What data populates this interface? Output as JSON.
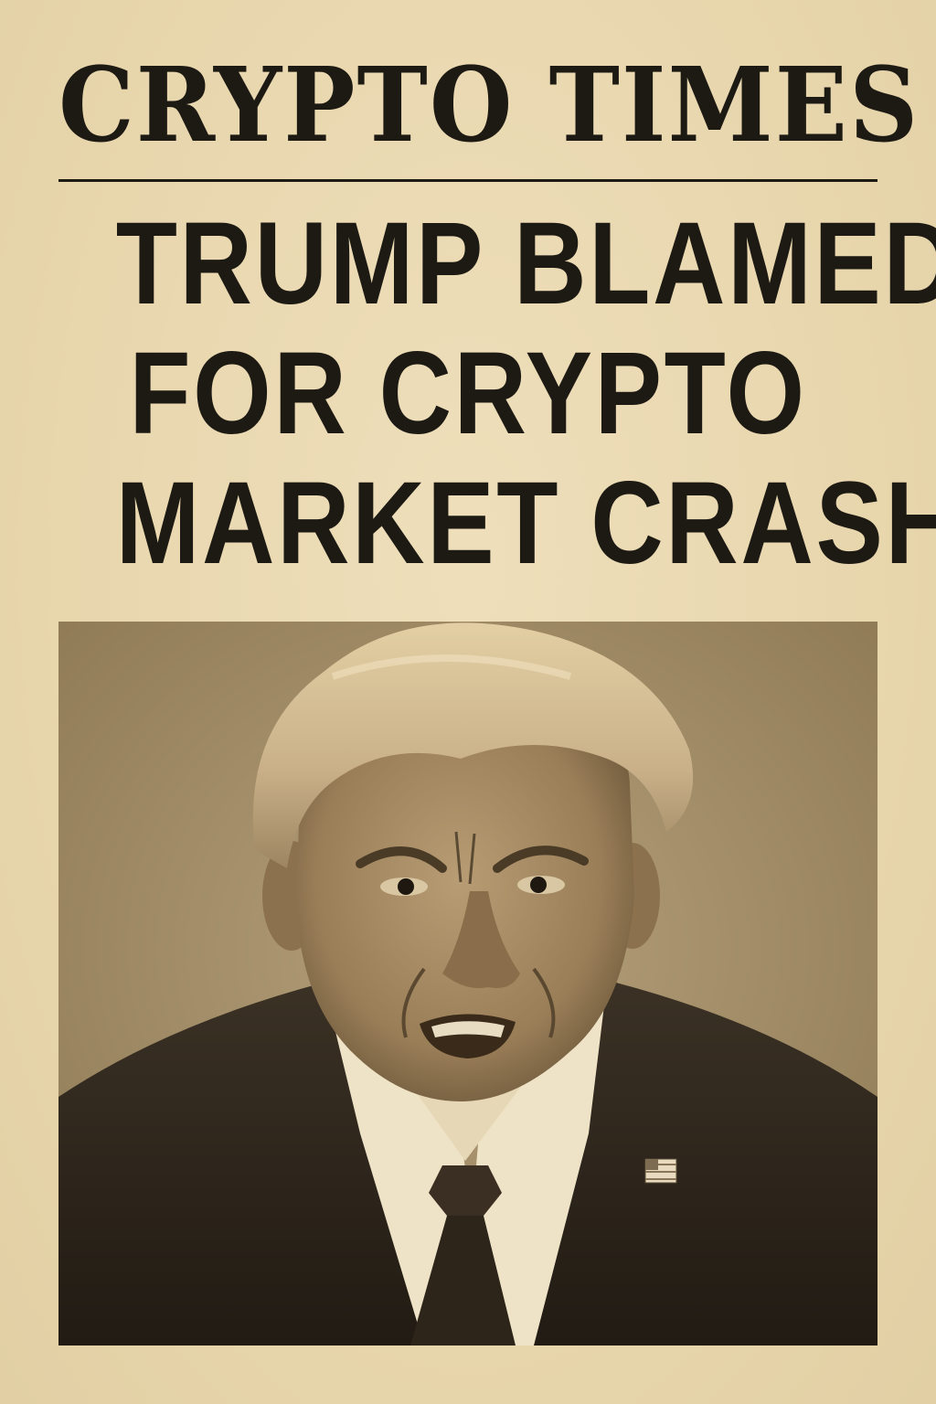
{
  "masthead": {
    "title": "CRYPTO TIMES"
  },
  "headline": {
    "lines": [
      "TRUMP BLAMED",
      "FOR CRYPTO",
      "MARKET CRASH"
    ]
  },
  "colors": {
    "paper": "#ead9b2",
    "ink": "#1d1a14",
    "photo_tone": "#a99470"
  }
}
